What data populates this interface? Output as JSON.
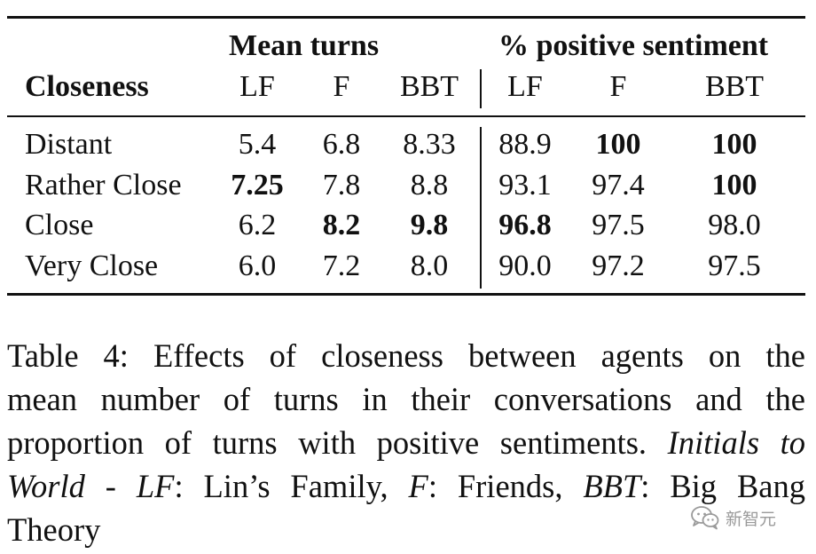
{
  "table": {
    "group_headers": {
      "mean_turns": "Mean turns",
      "positive_sentiment": "% positive sentiment"
    },
    "column_headers": {
      "closeness": "Closeness",
      "lf_1": "LF",
      "f_1": "F",
      "bbt_1": "BBT",
      "lf_2": "LF",
      "f_2": "F",
      "bbt_2": "BBT"
    },
    "rows": [
      {
        "label": "Distant",
        "values": [
          "5.4",
          "6.8",
          "8.33",
          "88.9",
          "100",
          "100"
        ],
        "bold": [
          false,
          false,
          false,
          false,
          true,
          true
        ]
      },
      {
        "label": "Rather Close",
        "values": [
          "7.25",
          "7.8",
          "8.8",
          "93.1",
          "97.4",
          "100"
        ],
        "bold": [
          true,
          false,
          false,
          false,
          false,
          true
        ]
      },
      {
        "label": "Close",
        "values": [
          "6.2",
          "8.2",
          "9.8",
          "96.8",
          "97.5",
          "98.0"
        ],
        "bold": [
          false,
          true,
          true,
          true,
          false,
          false
        ]
      },
      {
        "label": "Very Close",
        "values": [
          "6.0",
          "7.2",
          "8.0",
          "90.0",
          "97.2",
          "97.5"
        ],
        "bold": [
          false,
          false,
          false,
          false,
          false,
          false
        ]
      }
    ]
  },
  "caption": {
    "line1": "Table 4:  Effects of closeness between agents on the",
    "line2": "mean number of turns in their conversations and the",
    "line3_a": "proportion of turns with positive sentiments.",
    "line3_b": "Initials to",
    "line4_a": "World",
    "line4_b": " - ",
    "line4_c": "LF",
    "line4_d": ": Lin’s Family, ",
    "line4_e": "F",
    "line4_f": ": Friends, ",
    "line4_g": "BBT",
    "line4_h": ": Big Bang",
    "line5": "Theory"
  },
  "watermark": {
    "text": "新智元",
    "icon": "wechat-icon"
  }
}
